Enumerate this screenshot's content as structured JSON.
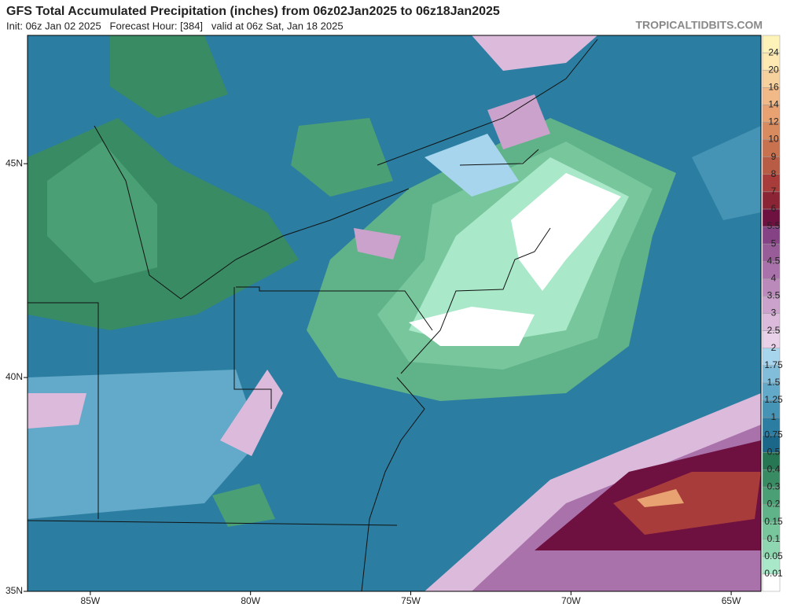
{
  "header": {
    "title": "GFS Total Accumulated Precipitation (inches) from 06z02Jan2025 to 06z18Jan2025",
    "subtitle": "Init: 06z Jan 02 2025   Forecast Hour: [384]   valid at 06z Sat, Jan 18 2025",
    "watermark": "TROPICALTIDBITS.COM"
  },
  "map": {
    "lonlim": [
      -86.96,
      -64.07
    ],
    "latlim": [
      35,
      48
    ],
    "lon_ticks": [
      {
        "value": -85,
        "label": "85W"
      },
      {
        "value": -80,
        "label": "80W"
      },
      {
        "value": -75,
        "label": "75W"
      },
      {
        "value": -70,
        "label": "70W"
      },
      {
        "value": -65,
        "label": "65W"
      }
    ],
    "lat_ticks": [
      {
        "value": 45,
        "label": "45N"
      },
      {
        "value": 40,
        "label": "40N"
      },
      {
        "value": 35,
        "label": "35N"
      }
    ]
  },
  "colorbar": {
    "levels": [
      0.01,
      0.05,
      0.1,
      0.15,
      0.2,
      0.3,
      0.4,
      0.5,
      0.75,
      1,
      1.25,
      1.5,
      1.75,
      2,
      2.5,
      3,
      3.5,
      4,
      4.5,
      5,
      5.5,
      6,
      7,
      8,
      9,
      10,
      12,
      14,
      16,
      20,
      24
    ],
    "colors": [
      "#ffffff",
      "#a9e8c9",
      "#8fd7b1",
      "#77c69c",
      "#60b288",
      "#4b9f75",
      "#388b63",
      "#267653",
      "#1b6789",
      "#2b7ea1",
      "#4593b5",
      "#63a9c9",
      "#82bed9",
      "#a6d5ed",
      "#e9d2e9",
      "#dbbadb",
      "#cba2cb",
      "#ba8aba",
      "#aa72aa",
      "#985c98",
      "#854386",
      "#6e1040",
      "#8b2434",
      "#a83c3a",
      "#b95c45",
      "#c97250",
      "#d98b60",
      "#e8a171",
      "#f0b987",
      "#f7d19d",
      "#fde9b1",
      "#fdf3b8"
    ]
  }
}
